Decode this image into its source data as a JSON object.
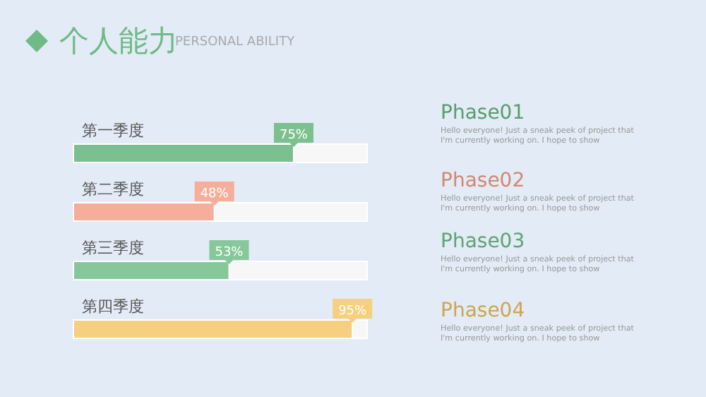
{
  "chart_data": {
    "type": "bar",
    "orientation": "horizontal",
    "title": "个人能力",
    "subtitle": "PERSONAL ABILITY",
    "categories": [
      "第一季度",
      "第二季度",
      "第三季度",
      "第四季度"
    ],
    "values": [
      75,
      48,
      53,
      95
    ],
    "colors": [
      "#7dc08f",
      "#f6ae9b",
      "#86c89a",
      "#f6cf7f"
    ],
    "xlim": [
      0,
      100
    ],
    "tick_labels": "y",
    "value_labels": [
      "75%",
      "48%",
      "53%",
      "95%"
    ],
    "grid": false,
    "legend": false,
    "annotations": [
      "Phase01",
      "Hello everyone! Just a sneak peek of project that I'm currently working on. I hope to show",
      "Phase02",
      "Hello everyone! Just a sneak peek of project that I'm currently working on. I hope to show",
      "Phase03",
      "Hello everyone! Just a sneak peek of project that I'm currently working on. I hope to show",
      "Phase04",
      "Hello everyone! Just a sneak peek of project that I'm currently working on. I hope to show"
    ]
  }
}
